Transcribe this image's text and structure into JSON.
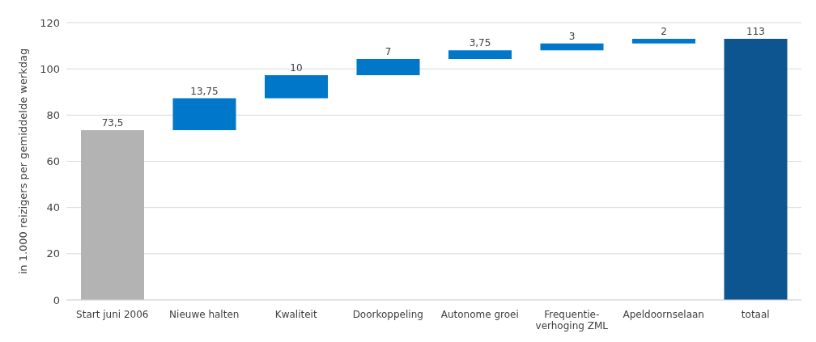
{
  "chart_data": {
    "type": "bar",
    "ylabel": "in 1.000 reizigers per gemiddelde werkdag",
    "categories": [
      "Start juni 2006",
      "Nieuwe halten",
      "Kwaliteit",
      "Doorkoppeling",
      "Autonome groei",
      "Frequentie-verhoging ZML",
      "Apeldoornselaan",
      "totaal"
    ],
    "values": [
      73.5,
      13.75,
      10,
      7,
      3.75,
      3,
      2,
      113
    ],
    "base": [
      0,
      73.5,
      87.25,
      97.25,
      104.25,
      108,
      111,
      0
    ],
    "colors": [
      "#b3b3b3",
      "#0077c8",
      "#0077c8",
      "#0077c8",
      "#0077c8",
      "#0077c8",
      "#0077c8",
      "#0d5591"
    ],
    "value_labels": [
      "73,5",
      "13,75",
      "10",
      "7",
      "3,75",
      "3",
      "2",
      "113"
    ],
    "ylim": [
      0,
      120
    ],
    "yticks": [
      0,
      20,
      40,
      60,
      80,
      100,
      120
    ],
    "grid": "y"
  }
}
